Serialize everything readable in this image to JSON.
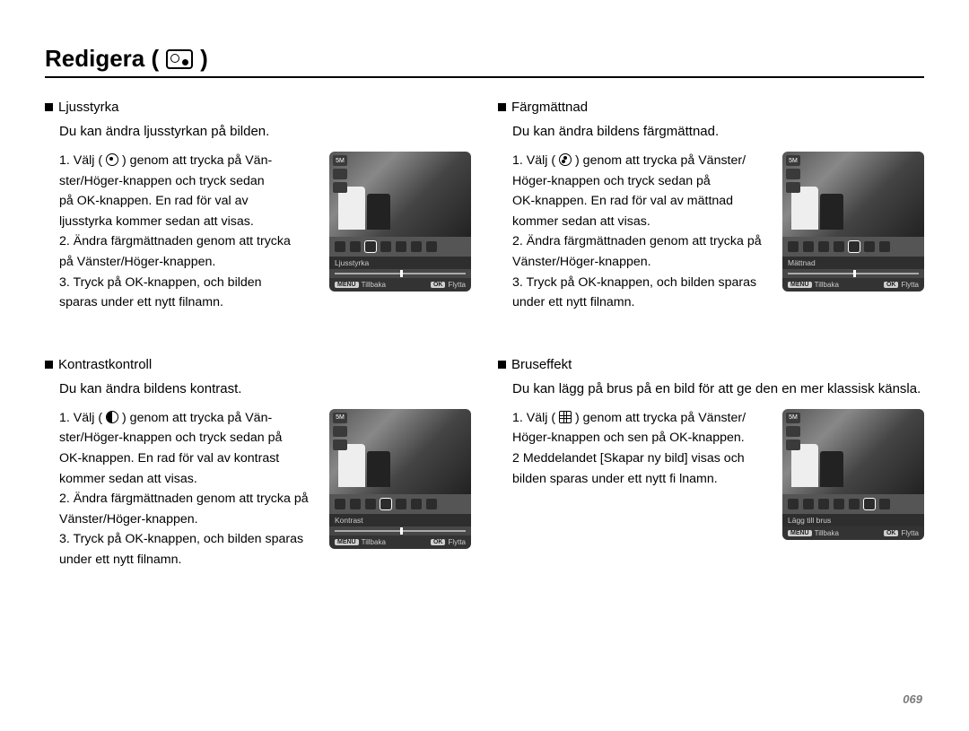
{
  "page": {
    "title": "Redigera (",
    "title_close": ")",
    "number": "069"
  },
  "screen_common": {
    "side_top": "5M",
    "back_btn": "MENU",
    "back_label": "Tillbaka",
    "move_btn": "OK",
    "move_label": "Flytta"
  },
  "sections": {
    "brightness": {
      "heading": "Ljusstyrka",
      "desc": "Du kan ändra ljusstyrkan på bilden.",
      "step1a": "1. Välj (",
      "step1b": ") genom att trycka på Vän-",
      "step1c": "ster/Höger-knappen och tryck sedan",
      "step1d": "på OK-knappen. En rad för val av",
      "step1e": "ljusstyrka kommer sedan att visas.",
      "step2a": "2. Ändra färgmättnaden genom att trycka",
      "step2b": "på Vänster/Höger-knappen.",
      "step3a": "3. Tryck på OK-knappen, och bilden",
      "step3b": "sparas under ett nytt filnamn.",
      "screen_label": "Ljusstyrka"
    },
    "contrast": {
      "heading": "Kontrastkontroll",
      "desc": "Du kan ändra bildens kontrast.",
      "step1a": "1. Välj (",
      "step1b": ") genom att trycka på Vän-",
      "step1c": "ster/Höger-knappen och tryck sedan på",
      "step1d": "OK-knappen. En rad för val av kontrast",
      "step1e": "kommer sedan att visas.",
      "step2a": "2. Ändra färgmättnaden genom att trycka på",
      "step2b": "Vänster/Höger-knappen.",
      "step3a": "3. Tryck på OK-knappen, och bilden sparas",
      "step3b": "under ett nytt filnamn.",
      "screen_label": "Kontrast"
    },
    "saturation": {
      "heading": "Färgmättnad",
      "desc": "Du kan ändra bildens färgmättnad.",
      "step1a": "1. Välj (",
      "step1b": ") genom att trycka på Vänster/",
      "step1c": "Höger-knappen och tryck sedan på",
      "step1d": "OK-knappen. En rad för val av mättnad",
      "step1e": "kommer sedan att visas.",
      "step2a": "2. Ändra färgmättnaden genom att trycka på",
      "step2b": "Vänster/Höger-knappen.",
      "step3a": "3. Tryck på OK-knappen, och bilden sparas",
      "step3b": "under ett nytt filnamn.",
      "screen_label": "Mättnad"
    },
    "noise": {
      "heading": "Bruseffekt",
      "desc": "Du kan lägg på brus på en bild för att ge den en mer klassisk känsla.",
      "step1a": "1. Välj (",
      "step1b": ") genom att trycka på Vänster/",
      "step1c": "Höger-knappen och sen på OK-knappen.",
      "step2a": "2 Meddelandet [Skapar ny bild] visas och",
      "step2b": "bilden sparas under ett nytt fi lnamn.",
      "screen_label": "Lägg till brus"
    }
  }
}
